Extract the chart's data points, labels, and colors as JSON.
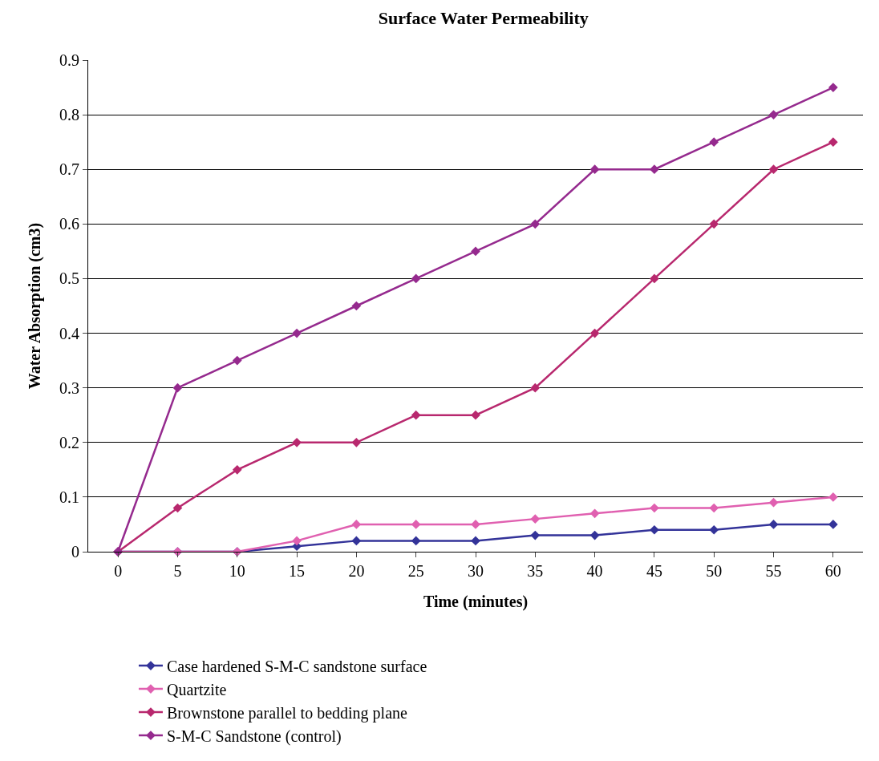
{
  "chart_data": {
    "type": "line",
    "title": "Surface Water Permeability",
    "xlabel": "Time (minutes)",
    "ylabel": "Water Absorption (cm3)",
    "categories": [
      "0",
      "5",
      "10",
      "15",
      "20",
      "25",
      "30",
      "35",
      "40",
      "45",
      "50",
      "55",
      "60"
    ],
    "series": [
      {
        "name": "Case hardened S-M-C sandstone surface",
        "color": "#333399",
        "values": [
          0,
          0,
          0,
          0.01,
          0.02,
          0.02,
          0.02,
          0.03,
          0.03,
          0.04,
          0.04,
          0.05,
          0.05
        ]
      },
      {
        "name": "Quartzite",
        "color": "#e060b0",
        "values": [
          0,
          0,
          0,
          0.02,
          0.05,
          0.05,
          0.05,
          0.06,
          0.07,
          0.08,
          0.08,
          0.09,
          0.1
        ]
      },
      {
        "name": "Brownstone parallel to bedding plane",
        "color": "#b8286e",
        "values": [
          0,
          0.08,
          0.15,
          0.2,
          0.2,
          0.25,
          0.25,
          0.3,
          0.4,
          0.5,
          0.6,
          0.7,
          0.75
        ]
      },
      {
        "name": "S-M-C Sandstone (control)",
        "color": "#952a8e",
        "values": [
          0,
          0.3,
          0.35,
          0.4,
          0.45,
          0.5,
          0.55,
          0.6,
          0.7,
          0.7,
          0.75,
          0.8,
          0.85
        ]
      }
    ],
    "ylim": [
      0,
      0.9
    ],
    "yticks": [
      0,
      0.1,
      0.2,
      0.3,
      0.4,
      0.5,
      0.6,
      0.7,
      0.8,
      0.9
    ],
    "grid": "y",
    "legend": "bottom",
    "marker": "diamond",
    "line_style": "solid"
  }
}
